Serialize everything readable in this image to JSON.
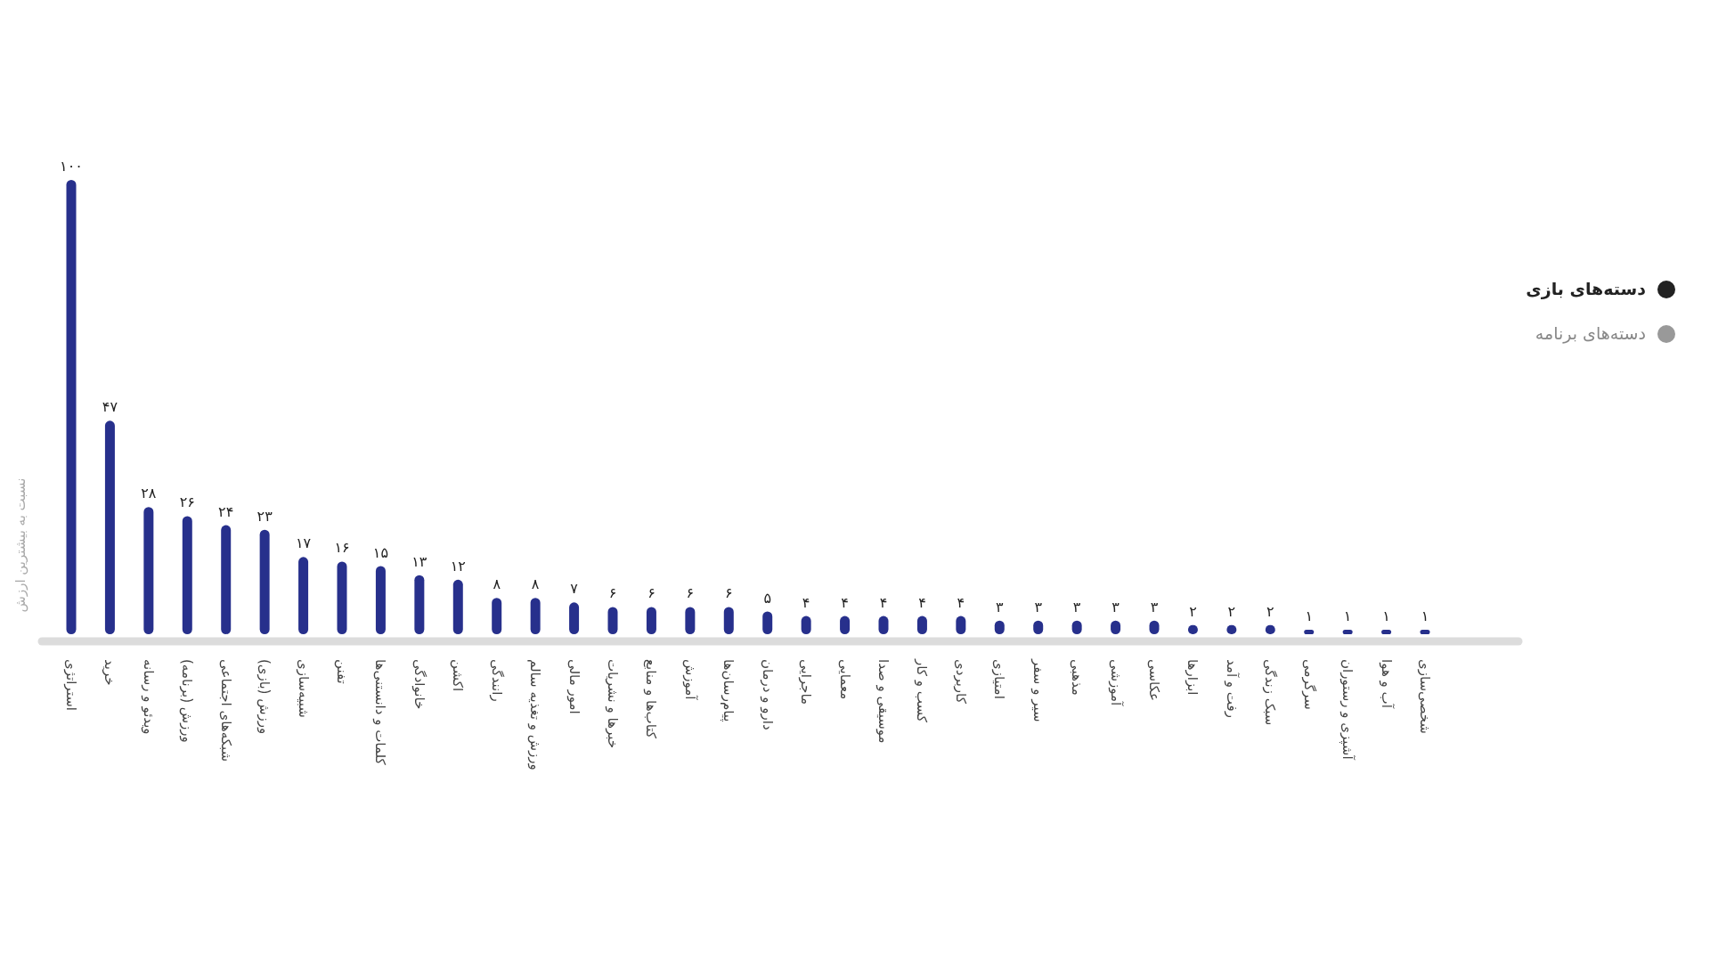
{
  "chart_data": {
    "type": "bar",
    "ylabel": "نسبت به بیشترین ارزش",
    "categories": [
      "استراتژی",
      "خرید",
      "ویدئو و رسانه",
      "ورزش (برنامه)",
      "شبکه‌های اجتماعی",
      "ورزش (بازی)",
      "شبیه‌سازی",
      "تفنن",
      "کلمات و دانستنی‌ها",
      "خانوادگی",
      "اکشن",
      "رانندگی",
      "ورزش و تغذیه سالم",
      "امور مالی",
      "خبرها و نشریات",
      "کتاب‌ها و منابع",
      "آموزش",
      "پیام‌رسان‌ها",
      "دارو و درمان",
      "ماجرایی",
      "معمایی",
      "موسیقی و صدا",
      "کسب و کار",
      "کاربردی",
      "امتیازی",
      "سیر و سفر",
      "مذهبی",
      "آموزشی",
      "عکاسی",
      "ابزارها",
      "رفت و آمد",
      "سبک زندگی",
      "سرگرمی",
      "آشپزی و رستوران",
      "آب و هوا",
      "شخصی‌سازی"
    ],
    "values": [
      100,
      47,
      28,
      26,
      24,
      23,
      17,
      16,
      15,
      13,
      12,
      8,
      8,
      7,
      6,
      6,
      6,
      6,
      5,
      4,
      4,
      4,
      4,
      4,
      3,
      3,
      3,
      3,
      3,
      2,
      2,
      2,
      1,
      1,
      1,
      1
    ],
    "value_labels": [
      "۱۰۰",
      "۴۷",
      "۲۸",
      "۲۶",
      "۲۴",
      "۲۳",
      "۱۷",
      "۱۶",
      "۱۵",
      "۱۳",
      "۱۲",
      "۸",
      "۸",
      "۷",
      "۶",
      "۶",
      "۶",
      "۶",
      "۵",
      "۴",
      "۴",
      "۴",
      "۴",
      "۴",
      "۳",
      "۳",
      "۳",
      "۳",
      "۳",
      "۲",
      "۲",
      "۲",
      "۱",
      "۱",
      "۱",
      "۱"
    ],
    "color": "#27308c",
    "ylim": [
      0,
      100
    ],
    "annotations": [
      "دسته‌های بازی",
      "دسته‌های برنامه"
    ]
  }
}
